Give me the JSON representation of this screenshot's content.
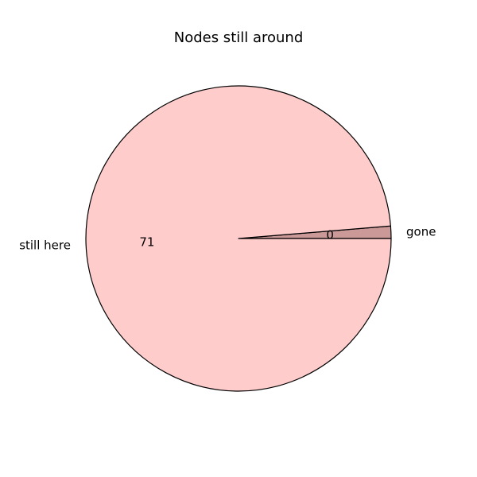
{
  "chart_data": {
    "type": "pie",
    "title": "Nodes still around",
    "slices": [
      {
        "label": "gone",
        "value": 0,
        "display": "0",
        "color": "#cc9999"
      },
      {
        "label": "still here",
        "value": 71,
        "display": "71",
        "color": "#ffcccc"
      }
    ],
    "start_angle_deg": 0,
    "direction": "counterclockwise",
    "edge_color": "#000000",
    "legend": "none"
  }
}
